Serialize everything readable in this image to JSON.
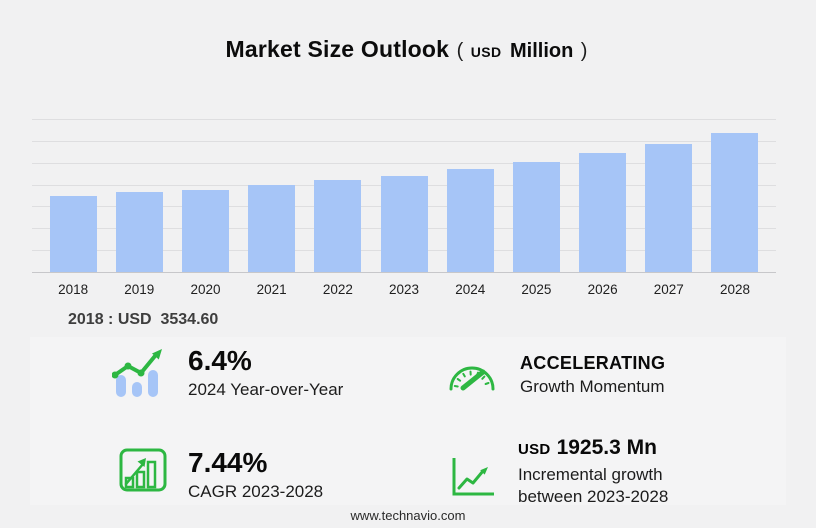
{
  "title": {
    "text": "Market Size Outlook",
    "unit_open": "(",
    "unit_currency": "USD",
    "unit_word": "Million",
    "unit_close": ")"
  },
  "chart_data": {
    "type": "bar",
    "title": "Market Size Outlook (USD Million)",
    "categories": [
      "2018",
      "2019",
      "2020",
      "2021",
      "2022",
      "2023",
      "2024",
      "2025",
      "2026",
      "2027",
      "2028"
    ],
    "values": [
      3534.6,
      3700,
      3795,
      4020,
      4250,
      4461,
      4746,
      5080,
      5490,
      5900,
      6386.3
    ],
    "xlabel": "",
    "ylabel": "",
    "ylim": [
      0,
      7000
    ],
    "grid_step": 1000,
    "gridlines": true,
    "legend": "none",
    "annotation_2018": "2018 : USD  3534.60"
  },
  "note": "2018 : USD  3534.60",
  "stats": {
    "yoy": {
      "value": "6.4%",
      "label": "2024 Year-over-Year",
      "icon": "trend-bars"
    },
    "momentum": {
      "value": "ACCELERATING",
      "label": "Growth Momentum",
      "icon": "speedometer"
    },
    "cagr": {
      "value": "7.44%",
      "label": "CAGR 2023-2028",
      "icon": "growth-chart"
    },
    "incremental": {
      "value_prefix": "USD",
      "value": "1925.3 Mn",
      "label_line1": "Incremental growth",
      "label_line2": "between 2023-2028",
      "icon": "line-growth"
    }
  },
  "footer": {
    "url": "www.technavio.com"
  },
  "colors": {
    "background": "#f1f1f2",
    "bar_blue": "#a6c5f7",
    "accent_green": "#2db742",
    "grid": "#dedee0"
  }
}
